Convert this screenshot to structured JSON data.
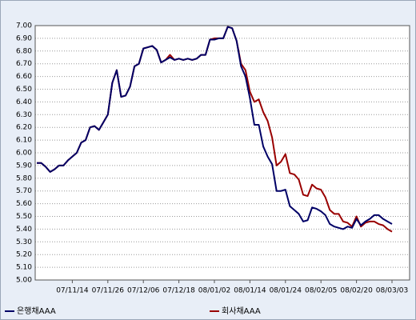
{
  "chart_data": {
    "type": "line",
    "categories": [
      null,
      null,
      null,
      null,
      null,
      null,
      null,
      null,
      "07/11/14",
      null,
      null,
      null,
      null,
      null,
      null,
      null,
      "07/11/26",
      null,
      null,
      null,
      null,
      null,
      null,
      null,
      "07/12/06",
      null,
      null,
      null,
      null,
      null,
      null,
      null,
      "07/12/18",
      null,
      null,
      null,
      null,
      null,
      null,
      null,
      "08/01/02",
      null,
      null,
      null,
      null,
      null,
      null,
      null,
      "08/01/14",
      null,
      null,
      null,
      null,
      null,
      null,
      null,
      "08/01/24",
      null,
      null,
      null,
      null,
      null,
      null,
      null,
      "08/02/05",
      null,
      null,
      null,
      null,
      null,
      null,
      null,
      "08/02/20",
      null,
      null,
      null,
      null,
      null,
      null,
      null,
      "08/03/03"
    ],
    "series": [
      {
        "name": "은행채AAA",
        "color": "#000066",
        "values": [
          5.92,
          5.92,
          5.89,
          5.85,
          5.87,
          5.9,
          5.9,
          5.94,
          5.97,
          6.0,
          6.08,
          6.1,
          6.2,
          6.21,
          6.18,
          6.24,
          6.3,
          6.55,
          6.65,
          6.44,
          6.45,
          6.52,
          6.68,
          6.7,
          6.82,
          6.83,
          6.84,
          6.81,
          6.71,
          6.73,
          6.75,
          6.73,
          6.74,
          6.73,
          6.74,
          6.73,
          6.74,
          6.77,
          6.77,
          6.89,
          6.89,
          6.9,
          6.9,
          6.99,
          6.98,
          6.88,
          6.68,
          6.6,
          6.43,
          6.22,
          6.22,
          6.05,
          5.97,
          5.91,
          5.7,
          5.7,
          5.71,
          5.58,
          5.55,
          5.52,
          5.46,
          5.47,
          5.57,
          5.56,
          5.54,
          5.51,
          5.44,
          5.42,
          5.41,
          5.4,
          5.42,
          5.41,
          5.48,
          5.43,
          5.46,
          5.48,
          5.51,
          5.51,
          5.48,
          5.46,
          5.44
        ]
      },
      {
        "name": "회사채AAA",
        "color": "#990000",
        "values": [
          5.92,
          5.92,
          5.89,
          5.85,
          5.87,
          5.9,
          5.9,
          5.94,
          5.97,
          6.0,
          6.08,
          6.1,
          6.2,
          6.21,
          6.18,
          6.24,
          6.3,
          6.55,
          6.65,
          6.44,
          6.45,
          6.52,
          6.68,
          6.7,
          6.82,
          6.83,
          6.84,
          6.81,
          6.71,
          6.73,
          6.77,
          6.73,
          6.74,
          6.73,
          6.74,
          6.73,
          6.74,
          6.77,
          6.77,
          6.89,
          6.9,
          6.9,
          6.9,
          6.99,
          6.98,
          6.88,
          6.7,
          6.65,
          6.48,
          6.4,
          6.42,
          6.32,
          6.25,
          6.12,
          5.9,
          5.93,
          5.99,
          5.84,
          5.83,
          5.79,
          5.67,
          5.66,
          5.75,
          5.72,
          5.71,
          5.65,
          5.55,
          5.52,
          5.52,
          5.46,
          5.45,
          5.42,
          5.5,
          5.42,
          5.45,
          5.46,
          5.46,
          5.44,
          5.43,
          5.4,
          5.38
        ]
      }
    ],
    "ylim": [
      5,
      7
    ],
    "yticks": [
      {
        "value": 5,
        "label": "5.00"
      },
      {
        "value": 5.1,
        "label": "5.10"
      },
      {
        "value": 5.2,
        "label": "5.20"
      },
      {
        "value": 5.3,
        "label": "5.30"
      },
      {
        "value": 5.4,
        "label": "5.40"
      },
      {
        "value": 5.5,
        "label": "5.50"
      },
      {
        "value": 5.6,
        "label": "5.60"
      },
      {
        "value": 5.7,
        "label": "5.70"
      },
      {
        "value": 5.8,
        "label": "5.80"
      },
      {
        "value": 5.9,
        "label": "5.90"
      },
      {
        "value": 6,
        "label": "6.00"
      },
      {
        "value": 6.1,
        "label": "6.10"
      },
      {
        "value": 6.2,
        "label": "6.20"
      },
      {
        "value": 6.3,
        "label": "6.30"
      },
      {
        "value": 6.4,
        "label": "6.40"
      },
      {
        "value": 6.5,
        "label": "6.50"
      },
      {
        "value": 6.6,
        "label": "6.60"
      },
      {
        "value": 6.7,
        "label": "6.70"
      },
      {
        "value": 6.8,
        "label": "6.80"
      },
      {
        "value": 6.9,
        "label": "6.90"
      },
      {
        "value": 7,
        "label": "7.00"
      }
    ],
    "grid": true,
    "legend": "bottom"
  }
}
